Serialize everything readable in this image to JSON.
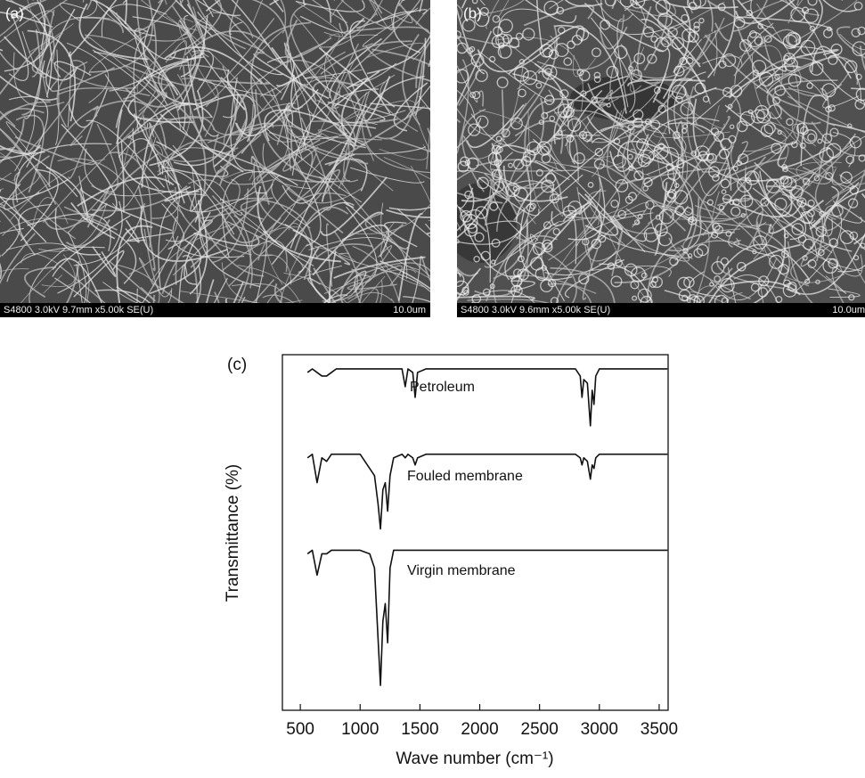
{
  "panels": [
    {
      "label": "(a)",
      "info": "S4800 3.0kV 9.7mm x5.00k SE(U)",
      "scale": "10.0um"
    },
    {
      "label": "(b)",
      "info": "S4800 3.0kV 9.6mm x5.00k SE(U)",
      "scale": "10.0um"
    }
  ],
  "chart_data": {
    "type": "line",
    "panel_label": "(c)",
    "x_label": "Wave number (cm⁻¹)",
    "y_label": "Transmittance (%)",
    "xlim": [
      350,
      3575
    ],
    "xticks": [
      500,
      1000,
      1500,
      2000,
      2500,
      3000,
      3500
    ],
    "ylim": [
      0,
      100
    ],
    "x": [
      560,
      600,
      640,
      680,
      720,
      760,
      800,
      900,
      1000,
      1080,
      1120,
      1150,
      1170,
      1190,
      1210,
      1230,
      1250,
      1280,
      1350,
      1377,
      1400,
      1440,
      1460,
      1480,
      1550,
      1700,
      2000,
      2500,
      2800,
      2840,
      2855,
      2870,
      2900,
      2925,
      2940,
      2955,
      2970,
      3000,
      3200,
      3500,
      3570
    ],
    "series": [
      {
        "name": "Petroleum",
        "color": "#111111",
        "values": [
          95,
          96,
          95,
          94,
          94,
          95,
          96,
          96,
          96,
          96,
          96,
          96,
          96,
          96,
          96,
          96,
          96,
          96,
          96,
          91,
          96,
          95,
          88,
          95,
          96,
          96,
          96,
          96,
          96,
          94,
          88,
          93,
          92,
          80,
          90,
          86,
          94,
          96,
          96,
          96,
          96
        ]
      },
      {
        "name": "Fouled membrane",
        "color": "#111111",
        "values": [
          71,
          72,
          64,
          71,
          70,
          72,
          72,
          72,
          72,
          68,
          66,
          58,
          51,
          62,
          64,
          56,
          66,
          71,
          72,
          71,
          72,
          71,
          69,
          71,
          72,
          72,
          72,
          72,
          72,
          71,
          69,
          71,
          70,
          65,
          69,
          68,
          71,
          72,
          72,
          72,
          72
        ]
      },
      {
        "name": "Virgin membrane",
        "color": "#111111",
        "values": [
          44,
          45,
          38,
          44,
          44,
          45,
          45,
          45,
          45,
          44,
          40,
          20,
          7,
          25,
          30,
          19,
          40,
          45,
          45,
          45,
          45,
          45,
          45,
          45,
          45,
          45,
          45,
          45,
          45,
          45,
          45,
          45,
          45,
          45,
          45,
          45,
          45,
          45,
          45,
          45,
          45
        ]
      }
    ]
  }
}
